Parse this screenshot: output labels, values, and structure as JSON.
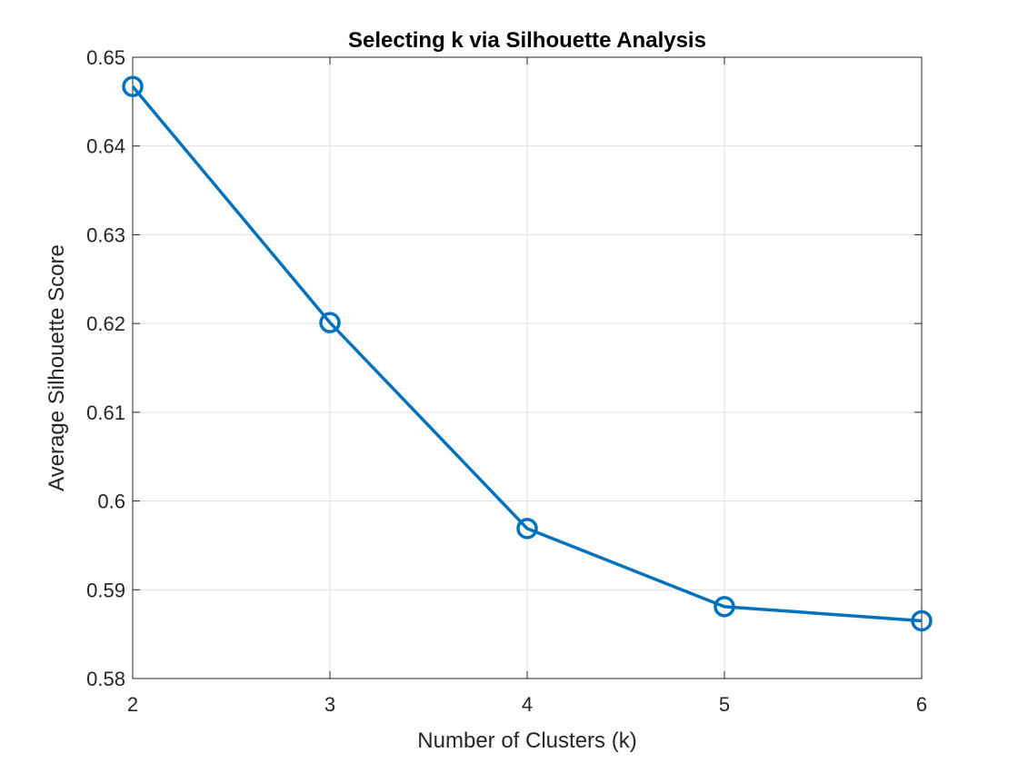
{
  "chart_data": {
    "type": "line",
    "title": "Selecting k via Silhouette Analysis",
    "xlabel": "Number of Clusters (k)",
    "ylabel": "Average Silhouette Score",
    "x": [
      2,
      3,
      4,
      5,
      6
    ],
    "series": [
      {
        "values": [
          0.6467,
          0.6201,
          0.5969,
          0.5881,
          0.5865
        ]
      }
    ],
    "xlim": [
      2,
      6
    ],
    "ylim": [
      0.58,
      0.65
    ],
    "xticks": [
      "2",
      "3",
      "4",
      "5",
      "6"
    ],
    "yticks": [
      "0.58",
      "0.59",
      "0.6",
      "0.61",
      "0.62",
      "0.63",
      "0.64",
      "0.65"
    ],
    "xtick_values": [
      2,
      3,
      4,
      5,
      6
    ],
    "ytick_values": [
      0.58,
      0.59,
      0.6,
      0.61,
      0.62,
      0.63,
      0.64,
      0.65
    ],
    "grid": true,
    "marker": "circle",
    "line_color": "#0072BD"
  }
}
